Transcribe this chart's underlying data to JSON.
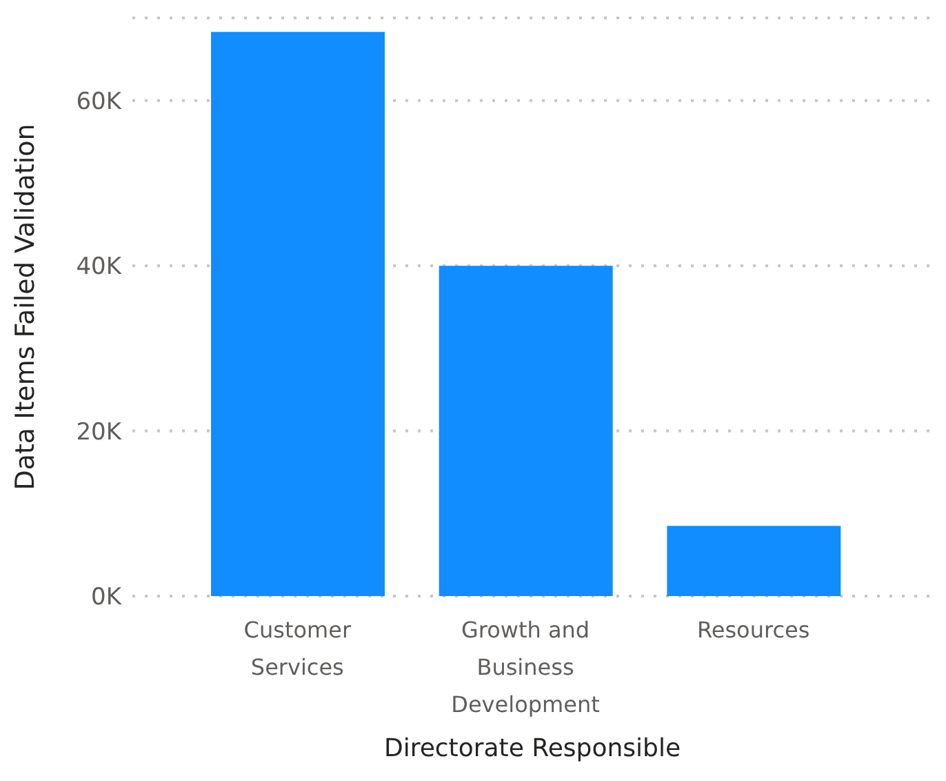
{
  "chart_data": {
    "type": "bar",
    "xlabel": "Directorate Responsible",
    "ylabel": "Data Items Failed Validation",
    "categories": [
      "Customer Services",
      "Growth and Business Development",
      "Resources"
    ],
    "values": [
      68300,
      40000,
      8500
    ],
    "color": "#118dff",
    "ylim": [
      0,
      70000
    ],
    "yticks": [
      {
        "value": 0,
        "label": "0K"
      },
      {
        "value": 20000,
        "label": "20K"
      },
      {
        "value": 40000,
        "label": "40K"
      },
      {
        "value": 60000,
        "label": "60K"
      }
    ],
    "grid": "y"
  }
}
